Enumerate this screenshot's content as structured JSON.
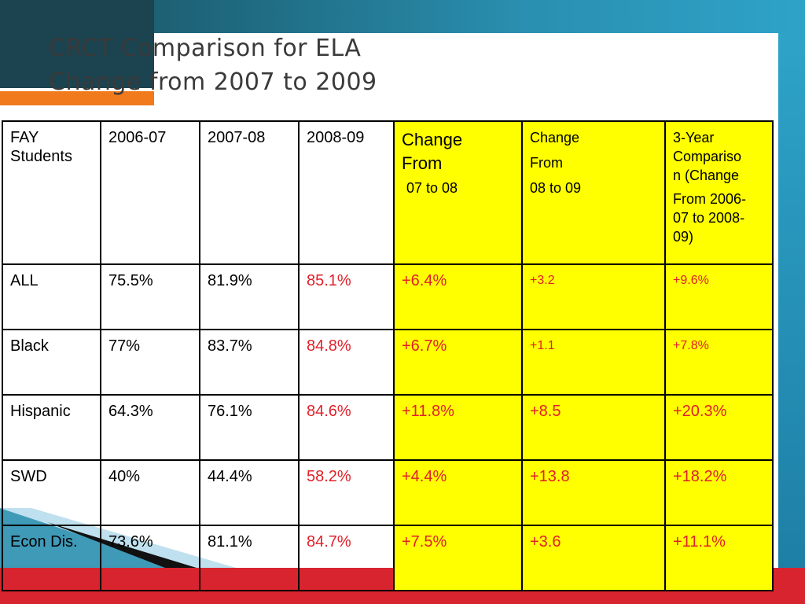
{
  "title": {
    "line1": "CRCT Comparison for ELA",
    "line2": "Change from 2007 to 2009"
  },
  "table": {
    "headers": {
      "col1": [
        "FAY",
        "Students"
      ],
      "col2": "2006-07",
      "col3": "2007-08",
      "col4": "2008-09",
      "col5": [
        "Change",
        "From",
        "07 to 08"
      ],
      "col6": [
        "Change",
        "From",
        "08 to 09"
      ],
      "col7": [
        "3-Year",
        "Compariso",
        "n (Change",
        "From 2006-",
        "07 to 2008-",
        "09)"
      ]
    },
    "rows": [
      {
        "group": "ALL",
        "y0607": "75.5%",
        "y0708": "81.9%",
        "y0809": "85.1%",
        "chg0708": "+6.4%",
        "chg0809": "+3.2",
        "chg3yr": "+9.6%"
      },
      {
        "group": "Black",
        "y0607": "77%",
        "y0708": "83.7%",
        "y0809": "84.8%",
        "chg0708": "+6.7%",
        "chg0809": "+1.1",
        "chg3yr": "+7.8%"
      },
      {
        "group": "Hispanic",
        "y0607": "64.3%",
        "y0708": "76.1%",
        "y0809": "84.6%",
        "chg0708": "+11.8%",
        "chg0809": "+8.5",
        "chg3yr": "+20.3%"
      },
      {
        "group": "SWD",
        "y0607": "40%",
        "y0708": "44.4%",
        "y0809": "58.2%",
        "chg0708": "+4.4%",
        "chg0809": "+13.8",
        "chg3yr": "+18.2%"
      },
      {
        "group": "Econ Dis.",
        "y0607": "73.6%",
        "y0708": "81.1%",
        "y0809": "84.7%",
        "chg0708": "+7.5%",
        "chg0809": "+3.6",
        "chg3yr": "+11.1%"
      }
    ]
  },
  "colors": {
    "highlight": "#ffff00",
    "change_text": "#e0202a",
    "accent_orange": "#f07a1c",
    "accent_red": "#d8242e",
    "accent_blue": "#2ea3c8"
  }
}
